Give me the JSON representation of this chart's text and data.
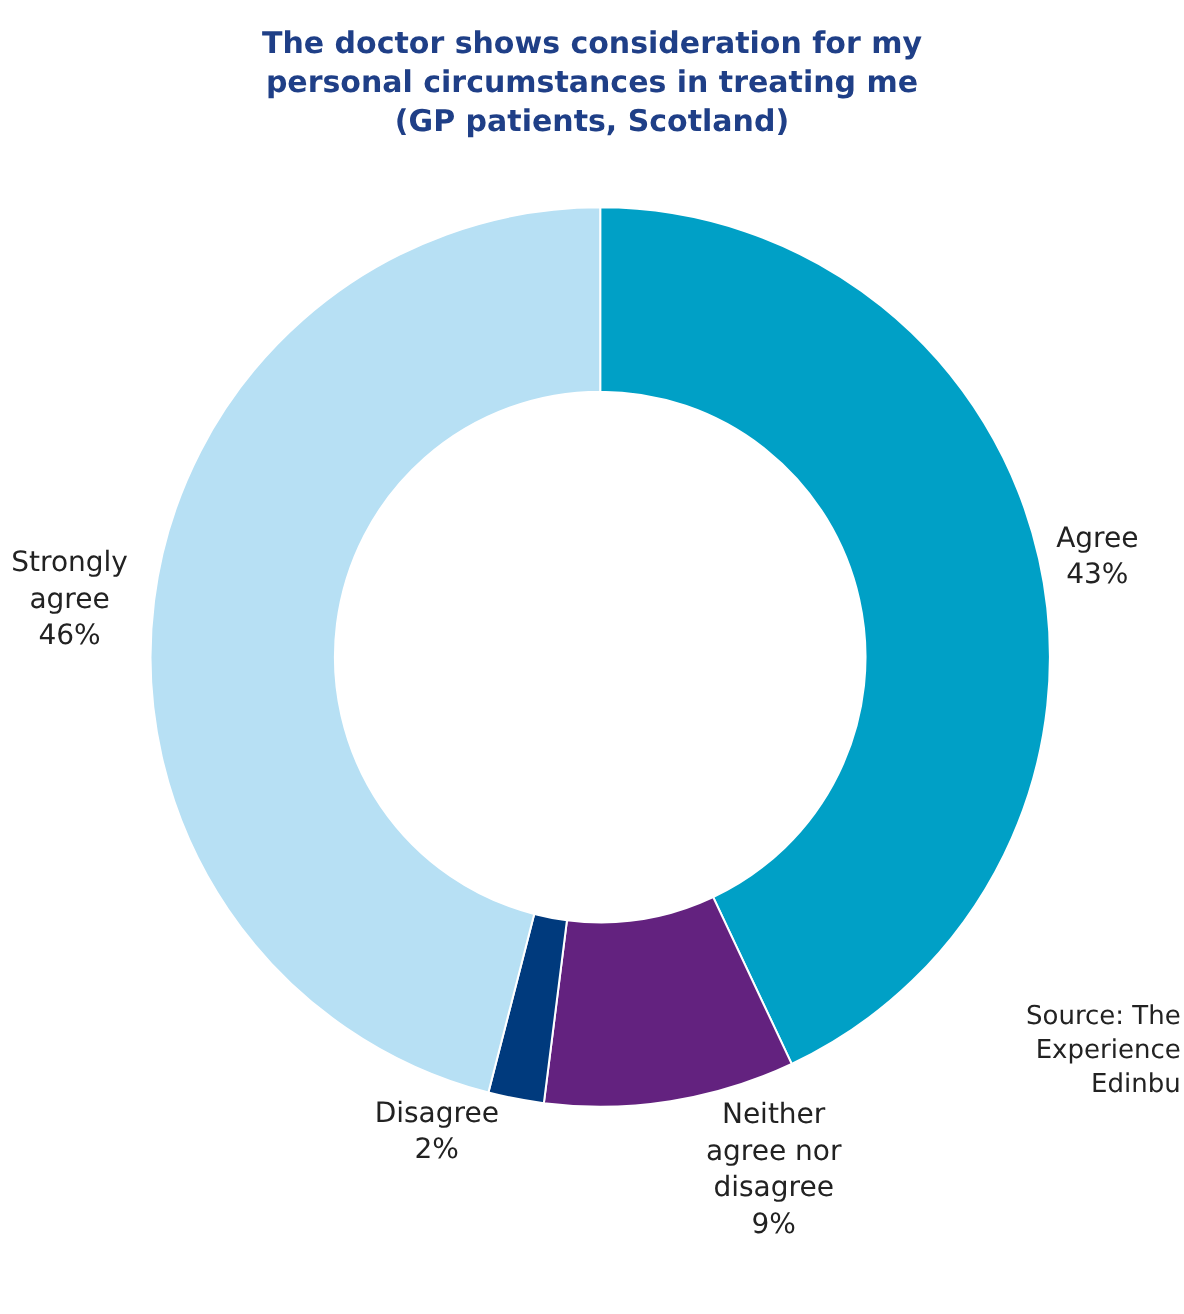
{
  "chart_data": {
    "type": "donut",
    "title": "The doctor shows consideration for my\npersonal circumstances in treating me\n(GP patients, Scotland)",
    "categories": [
      "Agree",
      "Neither\nagree nor\ndisagree",
      "Disagree",
      "Strongly\nagree"
    ],
    "values": [
      43,
      9,
      2,
      46
    ],
    "colors": [
      "#00a0c6",
      "#63227f",
      "#003a7d",
      "#b7e0f4"
    ],
    "value_labels": [
      "43%",
      "9%",
      "2%",
      "46%"
    ],
    "annotations": [
      "Source: The\nExperience\nEdinbu"
    ]
  }
}
